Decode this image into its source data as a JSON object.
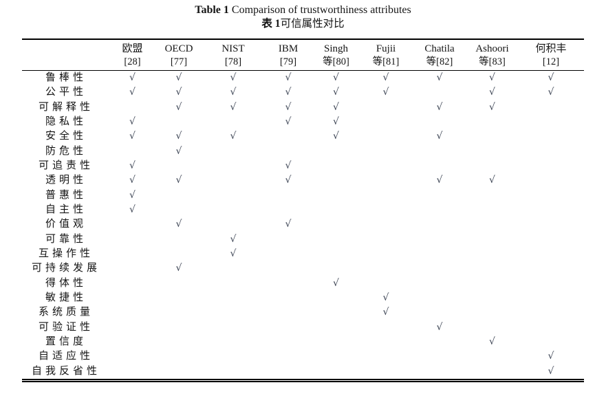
{
  "page": {
    "title_en": {
      "bold": "Table 1",
      "rest": " Comparison of trustworthiness attributes"
    },
    "title_cn": {
      "bold": "表 1",
      "rest": "可信属性对比"
    }
  },
  "chart_data": {
    "type": "table",
    "title": "Table 1 Comparison of trustworthiness attributes / 表1可信属性对比",
    "check_symbol": "√",
    "columns": [
      {
        "name": "欧盟",
        "ref": "[28]"
      },
      {
        "name": "OECD",
        "ref": "[77]"
      },
      {
        "name": "NIST",
        "ref": "[78]"
      },
      {
        "name": "IBM",
        "ref": "[79]"
      },
      {
        "name": "Singh",
        "ref": "等[80]"
      },
      {
        "name": "Fujii",
        "ref": "等[81]"
      },
      {
        "name": "Chatila",
        "ref": "等[82]"
      },
      {
        "name": "Ashoori",
        "ref": "等[83]"
      },
      {
        "name": "何积丰",
        "ref": "[12]"
      }
    ],
    "rows": [
      {
        "label": "鲁棒性",
        "checks": [
          1,
          1,
          1,
          1,
          1,
          1,
          1,
          1,
          1
        ]
      },
      {
        "label": "公平性",
        "checks": [
          1,
          1,
          1,
          1,
          1,
          1,
          0,
          1,
          1
        ]
      },
      {
        "label": "可解释性",
        "checks": [
          0,
          1,
          1,
          1,
          1,
          0,
          1,
          1,
          0
        ]
      },
      {
        "label": "隐私性",
        "checks": [
          1,
          0,
          0,
          1,
          1,
          0,
          0,
          0,
          0
        ]
      },
      {
        "label": "安全性",
        "checks": [
          1,
          1,
          1,
          0,
          1,
          0,
          1,
          0,
          0
        ]
      },
      {
        "label": "防危性",
        "checks": [
          0,
          1,
          0,
          0,
          0,
          0,
          0,
          0,
          0
        ]
      },
      {
        "label": "可追责性",
        "checks": [
          1,
          0,
          0,
          1,
          0,
          0,
          0,
          0,
          0
        ]
      },
      {
        "label": "透明性",
        "checks": [
          1,
          1,
          0,
          1,
          0,
          0,
          1,
          1,
          0
        ]
      },
      {
        "label": "普惠性",
        "checks": [
          1,
          0,
          0,
          0,
          0,
          0,
          0,
          0,
          0
        ]
      },
      {
        "label": "自主性",
        "checks": [
          1,
          0,
          0,
          0,
          0,
          0,
          0,
          0,
          0
        ]
      },
      {
        "label": "价值观",
        "checks": [
          0,
          1,
          0,
          1,
          0,
          0,
          0,
          0,
          0
        ]
      },
      {
        "label": "可靠性",
        "checks": [
          0,
          0,
          1,
          0,
          0,
          0,
          0,
          0,
          0
        ]
      },
      {
        "label": "互操作性",
        "checks": [
          0,
          0,
          1,
          0,
          0,
          0,
          0,
          0,
          0
        ]
      },
      {
        "label": "可持续发展",
        "checks": [
          0,
          1,
          0,
          0,
          0,
          0,
          0,
          0,
          0
        ]
      },
      {
        "label": "得体性",
        "checks": [
          0,
          0,
          0,
          0,
          1,
          0,
          0,
          0,
          0
        ]
      },
      {
        "label": "敏捷性",
        "checks": [
          0,
          0,
          0,
          0,
          0,
          1,
          0,
          0,
          0
        ]
      },
      {
        "label": "系统质量",
        "checks": [
          0,
          0,
          0,
          0,
          0,
          1,
          0,
          0,
          0
        ]
      },
      {
        "label": "可验证性",
        "checks": [
          0,
          0,
          0,
          0,
          0,
          0,
          1,
          0,
          0
        ]
      },
      {
        "label": "置信度",
        "checks": [
          0,
          0,
          0,
          0,
          0,
          0,
          0,
          1,
          0
        ]
      },
      {
        "label": "自适应性",
        "checks": [
          0,
          0,
          0,
          0,
          0,
          0,
          0,
          0,
          1
        ]
      },
      {
        "label": "自我反省性",
        "checks": [
          0,
          0,
          0,
          0,
          0,
          0,
          0,
          0,
          1
        ]
      }
    ]
  }
}
